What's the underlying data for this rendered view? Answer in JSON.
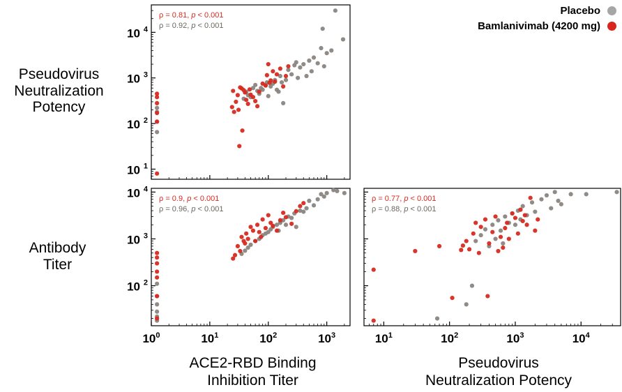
{
  "row_labels": {
    "top": [
      "Pseudovirus",
      "Neutralization",
      "Potency"
    ],
    "bottom": [
      "Antibody",
      "Titer"
    ]
  },
  "x_titles": {
    "left": [
      "ACE2-RBD Binding",
      "Inhibition Titer"
    ],
    "right": [
      "Pseudovirus",
      "Neutralization Potency"
    ]
  },
  "legend": {
    "items": [
      {
        "label": "Placebo",
        "color": "#a6a6a6"
      },
      {
        "label": "Bamlanivimab (4200 mg)",
        "color": "#d9261c"
      }
    ]
  },
  "colors": {
    "placebo": "#8a857f",
    "bamlanivimab": "#d62a20"
  },
  "chart_data": [
    {
      "id": "top-left",
      "type": "scatter",
      "xlabel": "",
      "ylabel": "",
      "log_x": true,
      "log_y": true,
      "xlim": [
        1,
        2500
      ],
      "ylim": [
        6,
        40000
      ],
      "x_ticks": [
        1,
        10,
        100,
        1000
      ],
      "x_tick_labels": [],
      "y_ticks": [
        10,
        100,
        1000,
        10000
      ],
      "y_tick_labels": [
        "10^1",
        "10^2",
        "10^3",
        "10^4"
      ],
      "annotations": [
        {
          "series": "Bamlanivimab (4200 mg)",
          "rho": "0.81",
          "p": "< 0.001"
        },
        {
          "series": "Placebo",
          "rho": "0.92",
          "p": "< 0.001"
        }
      ],
      "series": [
        {
          "name": "Placebo",
          "points": [
            [
              1.25,
              220
            ],
            [
              1.25,
              180
            ],
            [
              1.25,
              110
            ],
            [
              1.25,
              65
            ],
            [
              38,
              350
            ],
            [
              42,
              500
            ],
            [
              45,
              420
            ],
            [
              50,
              380
            ],
            [
              55,
              600
            ],
            [
              60,
              700
            ],
            [
              65,
              520
            ],
            [
              70,
              450
            ],
            [
              75,
              600
            ],
            [
              80,
              550
            ],
            [
              90,
              700
            ],
            [
              95,
              800
            ],
            [
              100,
              400
            ],
            [
              110,
              650
            ],
            [
              120,
              750
            ],
            [
              130,
              900
            ],
            [
              140,
              550
            ],
            [
              150,
              500
            ],
            [
              160,
              1100
            ],
            [
              170,
              800
            ],
            [
              180,
              280
            ],
            [
              200,
              900
            ],
            [
              220,
              1500
            ],
            [
              250,
              1200
            ],
            [
              280,
              1900
            ],
            [
              300,
              2200
            ],
            [
              320,
              1000
            ],
            [
              350,
              1700
            ],
            [
              400,
              2000
            ],
            [
              450,
              1100
            ],
            [
              500,
              2400
            ],
            [
              550,
              1400
            ],
            [
              600,
              2800
            ],
            [
              700,
              2100
            ],
            [
              800,
              4500
            ],
            [
              850,
              12000
            ],
            [
              900,
              1800
            ],
            [
              1000,
              3500
            ],
            [
              1200,
              4000
            ],
            [
              1400,
              30000
            ],
            [
              1900,
              7000
            ]
          ]
        },
        {
          "name": "Bamlanivimab (4200 mg)",
          "points": [
            [
              1.25,
              450
            ],
            [
              1.25,
              380
            ],
            [
              1.25,
              280
            ],
            [
              1.25,
              170
            ],
            [
              1.25,
              110
            ],
            [
              1.25,
              8
            ],
            [
              24,
              230
            ],
            [
              25,
              520
            ],
            [
              26,
              180
            ],
            [
              28,
              300
            ],
            [
              30,
              420
            ],
            [
              31,
              200
            ],
            [
              32,
              32
            ],
            [
              33,
              620
            ],
            [
              35,
              590
            ],
            [
              36,
              70
            ],
            [
              38,
              540
            ],
            [
              40,
              480
            ],
            [
              42,
              330
            ],
            [
              45,
              270
            ],
            [
              48,
              560
            ],
            [
              50,
              430
            ],
            [
              55,
              380
            ],
            [
              60,
              310
            ],
            [
              65,
              240
            ],
            [
              70,
              500
            ],
            [
              80,
              750
            ],
            [
              90,
              680
            ],
            [
              95,
              1150
            ],
            [
              100,
              2000
            ],
            [
              105,
              780
            ],
            [
              110,
              880
            ],
            [
              120,
              1400
            ],
            [
              130,
              830
            ],
            [
              140,
              1200
            ],
            [
              160,
              1600
            ],
            [
              180,
              650
            ],
            [
              200,
              1100
            ],
            [
              220,
              1800
            ]
          ]
        }
      ]
    },
    {
      "id": "bottom-left",
      "type": "scatter",
      "xlabel": "ACE2-RBD Binding Inhibition Titer",
      "ylabel": "",
      "log_x": true,
      "log_y": true,
      "xlim": [
        1,
        2500
      ],
      "ylim": [
        14,
        12000
      ],
      "x_ticks": [
        1,
        10,
        100,
        1000
      ],
      "x_tick_labels": [
        "10^0",
        "10^1",
        "10^2",
        "10^3"
      ],
      "y_ticks": [
        100,
        1000,
        10000
      ],
      "y_tick_labels": [
        "10^2",
        "10^3",
        "10^4"
      ],
      "annotations": [
        {
          "series": "Bamlanivimab (4200 mg)",
          "rho": "0.9",
          "p": "< 0.001"
        },
        {
          "series": "Placebo",
          "rho": "0.96",
          "p": "< 0.001"
        }
      ],
      "series": [
        {
          "name": "Placebo",
          "points": [
            [
              1.25,
              110
            ],
            [
              1.25,
              60
            ],
            [
              1.25,
              40
            ],
            [
              1.25,
              28
            ],
            [
              1.25,
              22
            ],
            [
              1.25,
              18
            ],
            [
              35,
              480
            ],
            [
              40,
              560
            ],
            [
              45,
              650
            ],
            [
              50,
              750
            ],
            [
              60,
              900
            ],
            [
              70,
              1000
            ],
            [
              80,
              1200
            ],
            [
              90,
              1300
            ],
            [
              100,
              1400
            ],
            [
              110,
              1600
            ],
            [
              120,
              1800
            ],
            [
              140,
              2000
            ],
            [
              150,
              1500
            ],
            [
              160,
              2200
            ],
            [
              180,
              2500
            ],
            [
              200,
              2000
            ],
            [
              220,
              3000
            ],
            [
              250,
              2800
            ],
            [
              280,
              3500
            ],
            [
              300,
              1800
            ],
            [
              350,
              4000
            ],
            [
              400,
              3800
            ],
            [
              450,
              4500
            ],
            [
              500,
              6500
            ],
            [
              600,
              5200
            ],
            [
              700,
              7000
            ],
            [
              800,
              9000
            ],
            [
              900,
              8000
            ],
            [
              1000,
              9500
            ],
            [
              1300,
              11000
            ],
            [
              1500,
              10500
            ],
            [
              2000,
              9500
            ]
          ]
        },
        {
          "name": "Bamlanivimab (4200 mg)",
          "points": [
            [
              1.25,
              500
            ],
            [
              1.25,
              400
            ],
            [
              1.25,
              300
            ],
            [
              1.25,
              200
            ],
            [
              1.25,
              150
            ],
            [
              1.25,
              60
            ],
            [
              1.25,
              20
            ],
            [
              25,
              380
            ],
            [
              27,
              450
            ],
            [
              30,
              700
            ],
            [
              33,
              550
            ],
            [
              35,
              1100
            ],
            [
              38,
              900
            ],
            [
              40,
              800
            ],
            [
              42,
              1300
            ],
            [
              45,
              1000
            ],
            [
              50,
              1800
            ],
            [
              55,
              1500
            ],
            [
              60,
              900
            ],
            [
              65,
              2000
            ],
            [
              70,
              1400
            ],
            [
              75,
              1100
            ],
            [
              80,
              2600
            ],
            [
              90,
              1700
            ],
            [
              100,
              3200
            ],
            [
              110,
              2200
            ],
            [
              120,
              1900
            ],
            [
              140,
              1500
            ],
            [
              160,
              2500
            ],
            [
              180,
              3600
            ],
            [
              200,
              2900
            ],
            [
              250,
              2100
            ],
            [
              300,
              3900
            ],
            [
              350,
              5000
            ],
            [
              400,
              5800
            ]
          ]
        }
      ]
    },
    {
      "id": "bottom-right",
      "type": "scatter",
      "xlabel": "Pseudovirus Neutralization Potency",
      "ylabel": "",
      "log_x": true,
      "log_y": true,
      "xlim": [
        5,
        40000
      ],
      "ylim": [
        14,
        12000
      ],
      "x_ticks": [
        10,
        100,
        1000,
        10000
      ],
      "x_tick_labels": [
        "10^1",
        "10^2",
        "10^3",
        "10^4"
      ],
      "y_ticks": [
        100,
        1000,
        10000
      ],
      "y_tick_labels": [],
      "annotations": [
        {
          "series": "Bamlanivimab (4200 mg)",
          "rho": "0.77",
          "p": "< 0.001"
        },
        {
          "series": "Placebo",
          "rho": "0.88",
          "p": "< 0.001"
        }
      ],
      "series": [
        {
          "name": "Placebo",
          "points": [
            [
              65,
              20
            ],
            [
              180,
              40
            ],
            [
              220,
              100
            ],
            [
              250,
              900
            ],
            [
              300,
              1200
            ],
            [
              350,
              1600
            ],
            [
              400,
              700
            ],
            [
              450,
              2000
            ],
            [
              500,
              1000
            ],
            [
              550,
              2500
            ],
            [
              600,
              1500
            ],
            [
              650,
              800
            ],
            [
              700,
              3000
            ],
            [
              800,
              2200
            ],
            [
              900,
              3500
            ],
            [
              1000,
              2000
            ],
            [
              1100,
              4000
            ],
            [
              1200,
              2600
            ],
            [
              1300,
              5000
            ],
            [
              1500,
              3200
            ],
            [
              1800,
              6000
            ],
            [
              2000,
              3800
            ],
            [
              2500,
              7000
            ],
            [
              3000,
              8500
            ],
            [
              3500,
              4500
            ],
            [
              4000,
              10000
            ],
            [
              4500,
              6500
            ],
            [
              5000,
              5500
            ],
            [
              7000,
              9000
            ],
            [
              12000,
              9000
            ],
            [
              35000,
              10000
            ]
          ]
        },
        {
          "name": "Bamlanivimab (4200 mg)",
          "points": [
            [
              7,
              220
            ],
            [
              7,
              18
            ],
            [
              30,
              550
            ],
            [
              70,
              700
            ],
            [
              110,
              55
            ],
            [
              150,
              580
            ],
            [
              160,
              720
            ],
            [
              180,
              900
            ],
            [
              200,
              600
            ],
            [
              230,
              1300
            ],
            [
              250,
              2200
            ],
            [
              280,
              500
            ],
            [
              300,
              1800
            ],
            [
              350,
              2600
            ],
            [
              380,
              60
            ],
            [
              400,
              800
            ],
            [
              450,
              1400
            ],
            [
              500,
              3000
            ],
            [
              550,
              550
            ],
            [
              600,
              1100
            ],
            [
              650,
              650
            ],
            [
              700,
              1700
            ],
            [
              750,
              2200
            ],
            [
              800,
              1000
            ],
            [
              900,
              3500
            ],
            [
              1000,
              2800
            ],
            [
              1100,
              1300
            ],
            [
              1200,
              4200
            ],
            [
              1300,
              2400
            ],
            [
              1400,
              3200
            ],
            [
              1500,
              2000
            ],
            [
              1700,
              7500
            ],
            [
              2000,
              1500
            ],
            [
              2200,
              2600
            ]
          ]
        }
      ]
    }
  ]
}
